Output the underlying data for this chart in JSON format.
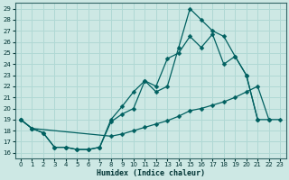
{
  "xlabel": "Humidex (Indice chaleur)",
  "background_color": "#cde8e4",
  "grid_color": "#b0d8d4",
  "line_color": "#006060",
  "xlim": [
    -0.5,
    23.5
  ],
  "ylim": [
    15.5,
    29.5
  ],
  "yticks": [
    16,
    17,
    18,
    19,
    20,
    21,
    22,
    23,
    24,
    25,
    26,
    27,
    28,
    29
  ],
  "xticks": [
    0,
    1,
    2,
    3,
    4,
    5,
    6,
    7,
    8,
    9,
    10,
    11,
    12,
    13,
    14,
    15,
    16,
    17,
    18,
    19,
    20,
    21,
    22,
    23
  ],
  "curve1_x": [
    0,
    1,
    2,
    3,
    4,
    5,
    6,
    7,
    8,
    9,
    10,
    11,
    12,
    13,
    14,
    15,
    16,
    17,
    18,
    19,
    20,
    21
  ],
  "curve1_y": [
    19.0,
    18.2,
    17.8,
    16.5,
    16.5,
    16.3,
    16.3,
    16.5,
    18.8,
    19.5,
    20.0,
    22.5,
    21.5,
    22.0,
    25.5,
    29.0,
    28.0,
    27.0,
    26.5,
    24.7,
    23.0,
    19.0
  ],
  "curve2_x": [
    0,
    1,
    2,
    3,
    4,
    5,
    6,
    7,
    8,
    9,
    10,
    11,
    12,
    13,
    14,
    15,
    16,
    17,
    18,
    19,
    20,
    21,
    22
  ],
  "curve2_y": [
    19.0,
    18.2,
    17.8,
    16.5,
    16.5,
    16.3,
    16.3,
    16.5,
    19.0,
    20.2,
    21.5,
    22.5,
    22.0,
    24.5,
    25.0,
    26.5,
    25.5,
    26.7,
    24.0,
    24.7,
    23.0,
    19.0,
    19.0
  ],
  "curve3_x": [
    0,
    1,
    8,
    9,
    10,
    11,
    12,
    13,
    14,
    15,
    16,
    17,
    18,
    19,
    20,
    21,
    22,
    23
  ],
  "curve3_y": [
    19.0,
    18.2,
    17.5,
    17.7,
    18.0,
    18.3,
    18.6,
    18.9,
    19.3,
    19.8,
    20.0,
    20.3,
    20.6,
    21.0,
    21.5,
    22.0,
    19.0,
    19.0
  ]
}
